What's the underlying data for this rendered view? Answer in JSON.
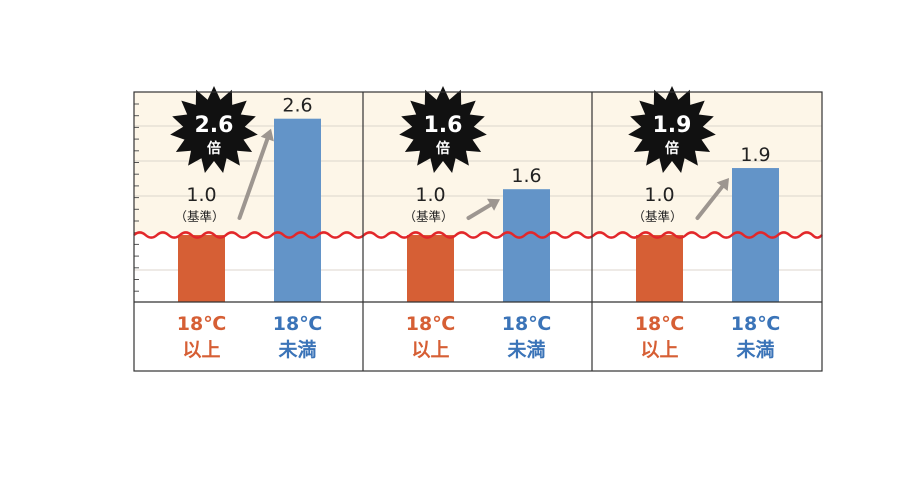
{
  "colors": {
    "above_18": "#d65f35",
    "below_18": "#6394c8",
    "label_above": "#d65f35",
    "label_below": "#3b74b8",
    "plot_bg": "#fdf6e8",
    "break_line": "#e2272a",
    "arrow": "#9d9690",
    "starburst": "#111111",
    "text": "#222222"
  },
  "chart_data": [
    {
      "type": "bar",
      "categories": [
        "18℃以上",
        "18℃未満"
      ],
      "values": [
        1.0,
        2.6
      ],
      "bar_labels": [
        "1.0",
        "2.6"
      ],
      "baseline_note": "（基準）",
      "ratio": {
        "value": "2.6",
        "unit": "倍"
      },
      "axis_break": true
    },
    {
      "type": "bar",
      "categories": [
        "18℃以上",
        "18℃未満"
      ],
      "values": [
        1.0,
        1.6
      ],
      "bar_labels": [
        "1.0",
        "1.6"
      ],
      "baseline_note": "（基準）",
      "ratio": {
        "value": "1.6",
        "unit": "倍"
      },
      "axis_break": true
    },
    {
      "type": "bar",
      "categories": [
        "18℃以上",
        "18℃未満"
      ],
      "values": [
        1.0,
        1.9
      ],
      "bar_labels": [
        "1.0",
        "1.9"
      ],
      "baseline_note": "（基準）",
      "ratio": {
        "value": "1.9",
        "unit": "倍"
      },
      "axis_break": true
    }
  ],
  "category_labels": {
    "above": {
      "line1": "18℃",
      "line2": "以上"
    },
    "below": {
      "line1": "18℃",
      "line2": "未満"
    }
  }
}
